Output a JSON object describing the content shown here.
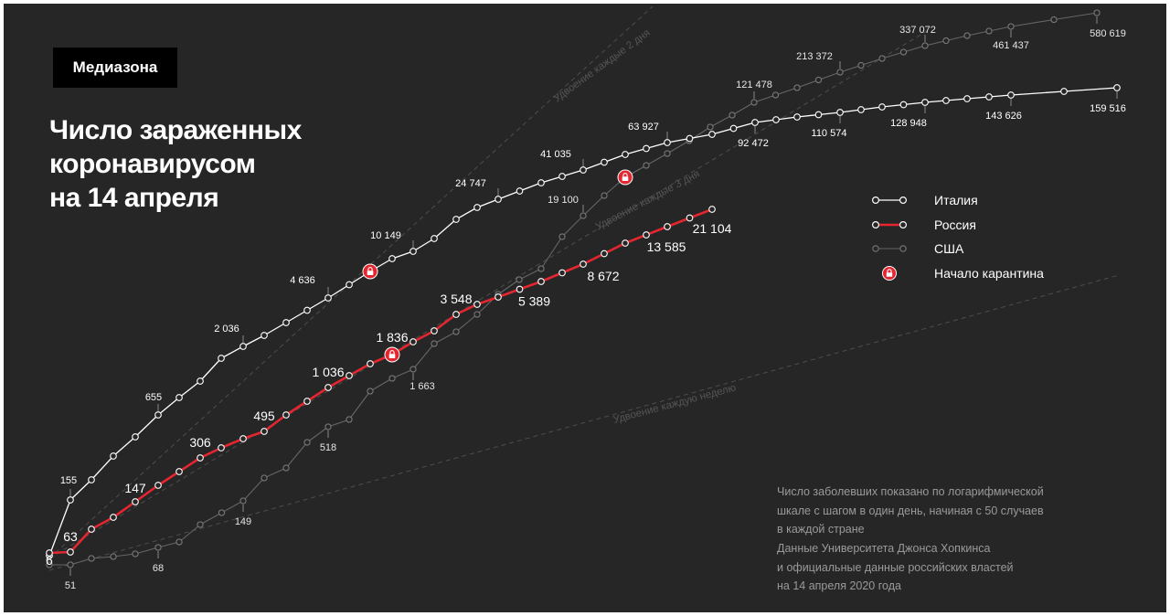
{
  "brand": "Медиазона",
  "title_lines": [
    "Число зараженных",
    "коронавирусом",
    "на 14 апреля"
  ],
  "legend": [
    {
      "key": "italy",
      "label": "Италия"
    },
    {
      "key": "russia",
      "label": "Россия"
    },
    {
      "key": "usa",
      "label": "США"
    },
    {
      "key": "lockdown",
      "label": "Начало карантина"
    }
  ],
  "notes": {
    "scale": [
      "Число заболевших показано по логарифмической",
      "шкале с шагом в один день, начиная с 50 случаев",
      "в каждой стране"
    ],
    "source": [
      "Данные Университета Джонса Хопкинса",
      "и официальные данные российских властей",
      "на 14 апреля 2020 года"
    ]
  },
  "colors": {
    "background": "#262626",
    "italy": "#ffffff",
    "russia": "#e3262f",
    "usa": "#8a8a8a",
    "guide": "#4d4d4d",
    "lockdown_icon": "#e3262f"
  },
  "chart_data": {
    "type": "line",
    "y_scale": "log",
    "x": "days since 50 cases",
    "series": [
      {
        "name": "Италия",
        "key": "italy",
        "points": 48,
        "lockdown_day": 15,
        "labels": [
          {
            "day": 1,
            "value": "155"
          },
          {
            "day": 5,
            "value": "655"
          },
          {
            "day": 9,
            "value": "2 036"
          },
          {
            "day": 13,
            "value": "4 636"
          },
          {
            "day": 17,
            "value": "10 149"
          },
          {
            "day": 21,
            "value": "24 747"
          },
          {
            "day": 25,
            "value": "41 035"
          },
          {
            "day": 29,
            "value": "63 927"
          },
          {
            "day": 33,
            "value": "92 472"
          },
          {
            "day": 37,
            "value": "110 574"
          },
          {
            "day": 41,
            "value": "128 948"
          },
          {
            "day": 45,
            "value": "143 626"
          },
          {
            "day": 47,
            "value": "159 516"
          }
        ]
      },
      {
        "name": "Россия",
        "key": "russia",
        "points": 32,
        "lockdown_day": 16,
        "labels": [
          {
            "day": 0,
            "value": "6"
          },
          {
            "day": 1,
            "value": "63"
          },
          {
            "day": 4,
            "value": "147"
          },
          {
            "day": 7,
            "value": "306"
          },
          {
            "day": 10,
            "value": "495"
          },
          {
            "day": 13,
            "value": "1 036"
          },
          {
            "day": 16,
            "value": "1 836"
          },
          {
            "day": 19,
            "value": "3 548"
          },
          {
            "day": 22,
            "value": "5 389"
          },
          {
            "day": 25,
            "value": "8 672"
          },
          {
            "day": 28,
            "value": "13 585"
          },
          {
            "day": 31,
            "value": "21 104"
          }
        ]
      },
      {
        "name": "США",
        "key": "usa",
        "points": 48,
        "lockdown_day": 27,
        "labels": [
          {
            "day": 1,
            "value": "51"
          },
          {
            "day": 5,
            "value": "68"
          },
          {
            "day": 9,
            "value": "149"
          },
          {
            "day": 13,
            "value": "518"
          },
          {
            "day": 17,
            "value": "1 663"
          },
          {
            "day": 25,
            "value": "19 100"
          },
          {
            "day": 33,
            "value": "121 478"
          },
          {
            "day": 37,
            "value": "213 372"
          },
          {
            "day": 41,
            "value": "337 072"
          },
          {
            "day": 45,
            "value": "461 437"
          },
          {
            "day": 47,
            "value": "580 619"
          }
        ]
      }
    ],
    "guides": [
      "Удвоение каждые 2 дня",
      "Удвоение каждые 3 дня",
      "Удвоение каждую неделю"
    ]
  }
}
